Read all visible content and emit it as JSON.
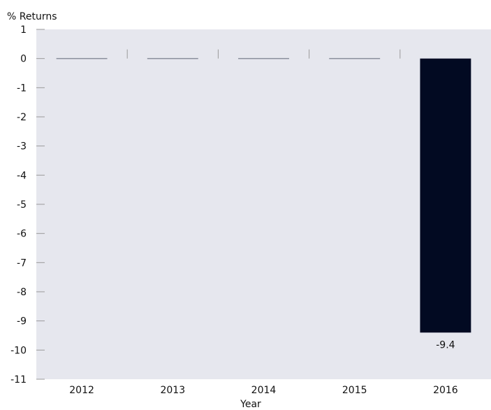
{
  "chart_data": {
    "type": "bar",
    "categories": [
      "2012",
      "2013",
      "2014",
      "2015",
      "2016"
    ],
    "values": [
      0,
      0,
      0,
      0,
      -9.4
    ],
    "data_labels": [
      "",
      "",
      "",
      "",
      "-9.4"
    ],
    "title": "",
    "xlabel": "Year",
    "ylabel": "% Returns",
    "ylim": [
      -11,
      1
    ],
    "yticks": [
      "1",
      "0",
      "-1",
      "-2",
      "-3",
      "-4",
      "-5",
      "-6",
      "-7",
      "-8",
      "-9",
      "-10",
      "-11"
    ],
    "grid": false,
    "legend": "none",
    "colors": {
      "bar": "#020a22",
      "zero_bar": "#8a8f9c",
      "plot_background": "#e6e7ee",
      "axis": "#9a9a9a"
    }
  }
}
